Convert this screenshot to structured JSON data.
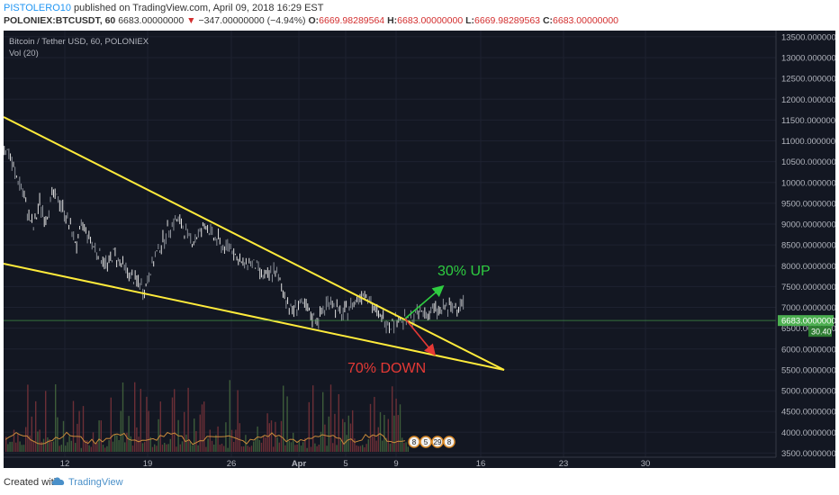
{
  "header": {
    "user": "PISTOLERO10",
    "published": " published on TradingView.com, April 09, 2018 16:29 EST",
    "symbol": "POLONIEX:BTCUSDT, 60",
    "price": "6683.00000000",
    "change": "−347.00000000 (−4.94%)",
    "o_label": "O:",
    "o_value": "6669.98289564",
    "h_label": "H:",
    "h_value": "6683.00000000",
    "l_label": "L:",
    "l_value": "6669.98289563",
    "c_label": "C:",
    "c_value": "6683.00000000"
  },
  "legend": {
    "title": "Bitcoin / Tether USD, 60, POLONIEX",
    "indicator": "Vol (20)"
  },
  "footer": {
    "created": "Created with",
    "brand": "TradingView"
  },
  "colors": {
    "background": "#131722",
    "up": "#e0e0e0",
    "down": "#8a8f98",
    "trendline": "#ffeb3b",
    "up_arrow": "#2ecc40",
    "down_arrow": "#e53935",
    "price_line": "#4caf50"
  },
  "chart_data": {
    "type": "line",
    "title": "Bitcoin / Tether USD, 60, POLONIEX",
    "y_axis": {
      "ticks": [
        "13500.00000000",
        "13000.00000000",
        "12500.00000000",
        "12000.00000000",
        "11500.00000000",
        "11000.00000000",
        "10500.00000000",
        "10000.00000000",
        "9500.00000000",
        "9000.00000000",
        "8500.00000000",
        "8000.00000000",
        "7500.00000000",
        "7000.00000000",
        "6500.00000000",
        "6000.00000000",
        "5500.00000000",
        "5000.00000000",
        "4500.00000000",
        "4000.00000000",
        "3500.00000000"
      ],
      "range": [
        3400,
        13650
      ]
    },
    "x_axis": {
      "ticks": [
        "12",
        "19",
        "26",
        "Apr",
        "5",
        "9",
        "16",
        "23",
        "30"
      ]
    },
    "price_series": [
      [
        0,
        10900
      ],
      [
        0.3,
        10700
      ],
      [
        0.6,
        10200
      ],
      [
        0.9,
        9900
      ],
      [
        1.2,
        9300
      ],
      [
        1.5,
        8900
      ],
      [
        1.8,
        9500
      ],
      [
        2.1,
        9100
      ],
      [
        2.4,
        9700
      ],
      [
        2.7,
        9600
      ],
      [
        3,
        9300
      ],
      [
        3.3,
        8900
      ],
      [
        3.6,
        8500
      ],
      [
        3.9,
        9000
      ],
      [
        4.2,
        8700
      ],
      [
        4.5,
        8400
      ],
      [
        4.8,
        8200
      ],
      [
        5.1,
        8000
      ],
      [
        5.4,
        8300
      ],
      [
        5.7,
        8100
      ],
      [
        6,
        7900
      ],
      [
        6.3,
        7700
      ],
      [
        6.6,
        7600
      ],
      [
        6.9,
        7400
      ],
      [
        7.2,
        7900
      ],
      [
        7.5,
        8300
      ],
      [
        7.8,
        8600
      ],
      [
        8.1,
        8900
      ],
      [
        8.4,
        9100
      ],
      [
        8.7,
        9000
      ],
      [
        9,
        8700
      ],
      [
        9.3,
        8600
      ],
      [
        9.6,
        8800
      ],
      [
        9.9,
        9000
      ],
      [
        10.2,
        8700
      ],
      [
        10.5,
        8600
      ],
      [
        10.8,
        8400
      ],
      [
        11.1,
        8500
      ],
      [
        11.4,
        8200
      ],
      [
        11.7,
        8000
      ],
      [
        12,
        8100
      ],
      [
        12.3,
        8000
      ],
      [
        12.6,
        7800
      ],
      [
        12.9,
        7700
      ],
      [
        13.2,
        7900
      ],
      [
        13.5,
        7600
      ],
      [
        13.8,
        7200
      ],
      [
        14.1,
        6900
      ],
      [
        14.4,
        7100
      ],
      [
        14.7,
        7000
      ],
      [
        15,
        6800
      ],
      [
        15.3,
        6700
      ],
      [
        15.6,
        6900
      ],
      [
        15.9,
        7200
      ],
      [
        16.2,
        7000
      ],
      [
        16.5,
        6800
      ],
      [
        16.8,
        6950
      ],
      [
        17.1,
        7100
      ],
      [
        17.4,
        7300
      ],
      [
        17.7,
        7400
      ],
      [
        18,
        7000
      ],
      [
        18.3,
        6800
      ],
      [
        18.6,
        6700
      ],
      [
        18.9,
        6600
      ],
      [
        19.2,
        6750
      ],
      [
        19.5,
        6700
      ],
      [
        19.8,
        6650
      ],
      [
        20.1,
        6800
      ],
      [
        20.4,
        6900
      ],
      [
        20.7,
        6850
      ],
      [
        21,
        6950
      ],
      [
        21.3,
        6900
      ],
      [
        21.6,
        7000
      ],
      [
        21.9,
        6950
      ],
      [
        22.2,
        7100
      ],
      [
        22.5,
        7150
      ]
    ],
    "trendlines": [
      {
        "name": "upper",
        "from": [
          0,
          11600
        ],
        "to": [
          27,
          5500
        ]
      },
      {
        "name": "lower",
        "from": [
          0,
          8100
        ],
        "to": [
          27,
          5500
        ]
      }
    ],
    "annotations": [
      {
        "text": "30% UP",
        "color": "#2ecc40"
      },
      {
        "text": "70% DOWN",
        "color": "#e53935"
      }
    ],
    "last_price": "6683.00000000",
    "volume_label": "30.40",
    "event_badges": [
      "8",
      "5",
      "29",
      "8"
    ]
  }
}
